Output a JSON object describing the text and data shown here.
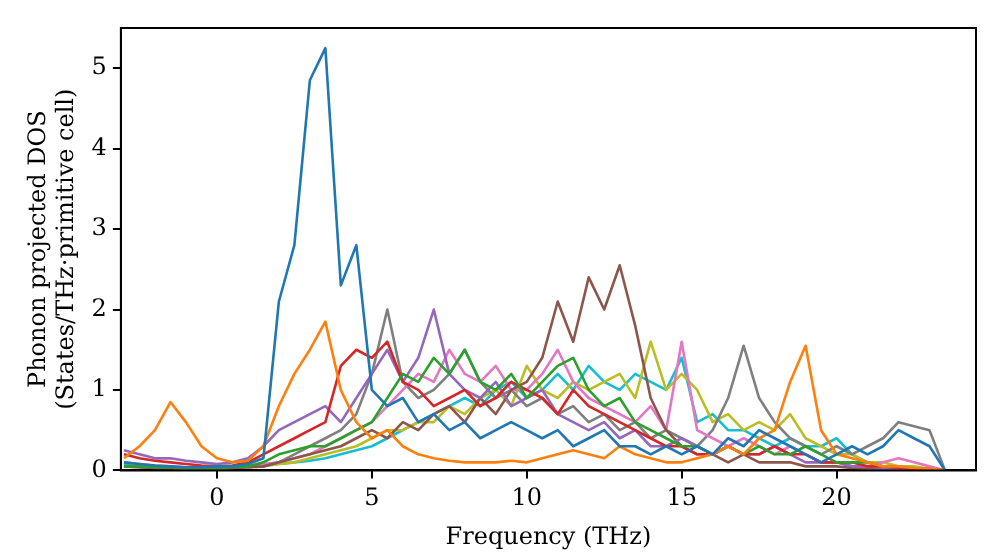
{
  "chart_data": {
    "type": "line",
    "xlabel": "Frequency (THz)",
    "ylabel": "Phonon projected DOS\n(States/THz·primitive cell)",
    "x": [
      -3,
      -2.5,
      -2,
      -1.5,
      -1,
      -0.5,
      0,
      0.5,
      1,
      1.5,
      2,
      2.5,
      3,
      3.5,
      4,
      4.5,
      5,
      5.5,
      6,
      6.5,
      7,
      7.5,
      8,
      8.5,
      9,
      9.5,
      10,
      10.5,
      11,
      11.5,
      12,
      12.5,
      13,
      13.5,
      14,
      14.5,
      15,
      15.5,
      16,
      16.5,
      17,
      17.5,
      18,
      18.5,
      19,
      19.5,
      20,
      20.5,
      21,
      21.5,
      22,
      22.5,
      23,
      23.5
    ],
    "series": [
      {
        "color": "#1f77b4",
        "values": [
          0.1,
          0.08,
          0.06,
          0.05,
          0.04,
          0.04,
          0.05,
          0.05,
          0.08,
          0.15,
          2.1,
          2.8,
          4.85,
          5.25,
          2.3,
          2.8,
          1.0,
          0.8,
          0.9,
          0.6,
          0.7,
          0.5,
          0.6,
          0.4,
          0.5,
          0.6,
          0.5,
          0.4,
          0.5,
          0.3,
          0.4,
          0.5,
          0.3,
          0.3,
          0.2,
          0.3,
          0.2,
          0.3,
          0.2,
          0.4,
          0.3,
          0.5,
          0.4,
          0.3,
          0.2,
          0.1,
          0.2,
          0.3,
          0.2,
          0.3,
          0.5,
          0.4,
          0.3,
          0
        ]
      },
      {
        "color": "#ff7f0e",
        "values": [
          0.15,
          0.3,
          0.5,
          0.85,
          0.6,
          0.3,
          0.15,
          0.1,
          0.12,
          0.3,
          0.8,
          1.2,
          1.5,
          1.85,
          1.0,
          0.6,
          0.4,
          0.5,
          0.3,
          0.2,
          0.15,
          0.12,
          0.1,
          0.1,
          0.1,
          0.12,
          0.1,
          0.15,
          0.2,
          0.25,
          0.2,
          0.15,
          0.3,
          0.2,
          0.15,
          0.1,
          0.1,
          0.15,
          0.2,
          0.3,
          0.2,
          0.4,
          0.5,
          1.1,
          1.55,
          0.5,
          0.2,
          0.15,
          0.1,
          0.05,
          0.05,
          0.03,
          0.02,
          0
        ]
      },
      {
        "color": "#2ca02c",
        "values": [
          0.05,
          0.05,
          0.04,
          0.04,
          0.03,
          0.03,
          0.03,
          0.04,
          0.05,
          0.1,
          0.2,
          0.25,
          0.3,
          0.3,
          0.4,
          0.5,
          0.6,
          0.9,
          1.2,
          1.1,
          1.4,
          1.2,
          1.5,
          1.1,
          1.0,
          1.2,
          0.9,
          1.1,
          1.3,
          1.4,
          1.0,
          0.8,
          0.9,
          0.6,
          0.5,
          0.4,
          0.3,
          0.3,
          0.2,
          0.3,
          0.2,
          0.3,
          0.2,
          0.2,
          0.3,
          0.2,
          0.1,
          0.1,
          0.1,
          0.05,
          null,
          null,
          null,
          null
        ]
      },
      {
        "color": "#d62728",
        "values": [
          0.2,
          0.15,
          0.12,
          0.1,
          0.08,
          0.06,
          0.05,
          0.06,
          0.1,
          0.2,
          0.3,
          0.4,
          0.5,
          0.6,
          1.3,
          1.5,
          1.4,
          1.6,
          1.1,
          1.0,
          0.8,
          0.9,
          1.0,
          0.8,
          0.9,
          1.1,
          1.0,
          0.9,
          0.7,
          1.0,
          0.8,
          0.7,
          0.6,
          0.5,
          0.4,
          0.3,
          0.3,
          0.2,
          0.2,
          0.3,
          0.2,
          0.2,
          0.3,
          0.2,
          0.2,
          0.1,
          0.1,
          0.1,
          0.05,
          0.05,
          0.03,
          0.02,
          0.02,
          0
        ]
      },
      {
        "color": "#9467bd",
        "values": [
          0.25,
          0.2,
          0.15,
          0.15,
          0.12,
          0.1,
          0.08,
          0.1,
          0.15,
          0.3,
          0.5,
          0.6,
          0.7,
          0.8,
          0.6,
          0.9,
          1.2,
          1.5,
          1.1,
          1.4,
          2.0,
          1.2,
          1.0,
          0.9,
          1.1,
          0.8,
          0.9,
          1.0,
          0.7,
          0.6,
          0.5,
          0.6,
          0.4,
          0.5,
          0.3,
          0.3,
          0.4,
          0.3,
          0.2,
          0.3,
          0.2,
          0.2,
          0.3,
          0.2,
          0.1,
          0.1,
          0.1,
          0.05,
          0.05,
          0.03,
          0.02,
          0.02,
          null,
          null
        ]
      },
      {
        "color": "#8c564b",
        "values": [
          0.05,
          0.04,
          0.03,
          0.03,
          0.02,
          0.02,
          0.02,
          0.03,
          0.04,
          0.05,
          0.1,
          0.15,
          0.2,
          0.25,
          0.3,
          0.4,
          0.5,
          0.4,
          0.6,
          0.5,
          0.7,
          0.8,
          0.6,
          0.9,
          0.7,
          1.0,
          1.1,
          1.4,
          2.1,
          1.6,
          2.4,
          2.0,
          2.55,
          1.8,
          0.9,
          0.5,
          0.3,
          0.2,
          0.2,
          0.1,
          0.2,
          0.1,
          0.1,
          0.1,
          0.05,
          0.05,
          0.05,
          0.03,
          0.02,
          0.02,
          0.01,
          0.01,
          0.01,
          0
        ]
      },
      {
        "color": "#e377c2",
        "values": [
          0.1,
          0.08,
          0.06,
          0.05,
          0.04,
          0.04,
          0.04,
          0.05,
          0.06,
          0.08,
          0.1,
          0.15,
          0.2,
          0.3,
          0.4,
          0.5,
          0.6,
          0.8,
          1.0,
          1.2,
          1.1,
          1.5,
          1.2,
          1.1,
          1.3,
          1.0,
          1.0,
          1.2,
          1.5,
          1.1,
          0.9,
          0.8,
          0.7,
          0.6,
          0.8,
          0.5,
          1.6,
          0.5,
          0.4,
          0.3,
          0.4,
          0.3,
          0.2,
          0.3,
          0.2,
          0.1,
          0.1,
          0.05,
          0.05,
          0.1,
          0.15,
          0.1,
          0.05,
          0
        ]
      },
      {
        "color": "#7f7f7f",
        "values": [
          0.05,
          0.04,
          0.03,
          0.03,
          0.02,
          0.02,
          0.02,
          0.03,
          0.04,
          0.05,
          0.1,
          0.2,
          0.3,
          0.4,
          0.5,
          0.7,
          1.2,
          2.0,
          1.1,
          0.9,
          1.0,
          1.2,
          1.5,
          1.1,
          0.9,
          1.0,
          0.8,
          0.9,
          0.7,
          0.8,
          0.6,
          0.7,
          0.5,
          0.6,
          0.4,
          0.5,
          0.4,
          0.3,
          0.5,
          0.9,
          1.55,
          0.9,
          0.6,
          0.4,
          0.3,
          0.2,
          0.3,
          0.2,
          0.3,
          0.4,
          0.6,
          0.55,
          0.5,
          0
        ]
      },
      {
        "color": "#bcbd22",
        "values": [
          null,
          null,
          null,
          null,
          null,
          null,
          null,
          null,
          0.04,
          0.05,
          0.08,
          0.1,
          0.15,
          0.2,
          0.25,
          0.3,
          0.4,
          0.5,
          0.5,
          0.6,
          0.6,
          0.8,
          0.7,
          0.9,
          1.0,
          0.8,
          1.3,
          1.0,
          0.9,
          1.1,
          1.0,
          1.1,
          1.2,
          0.9,
          1.6,
          1.0,
          1.2,
          1.0,
          0.6,
          0.7,
          0.5,
          0.6,
          0.5,
          0.7,
          0.4,
          0.3,
          0.2,
          0.2,
          0.1,
          0.1,
          0.05,
          0.05,
          0.02,
          0
        ]
      },
      {
        "color": "#17becf",
        "values": [
          0.08,
          0.06,
          0.05,
          0.04,
          0.04,
          0.03,
          0.03,
          0.04,
          0.05,
          0.06,
          0.08,
          0.1,
          0.12,
          0.15,
          0.2,
          0.25,
          0.3,
          0.4,
          0.5,
          0.6,
          0.7,
          0.8,
          0.9,
          0.8,
          1.0,
          1.1,
          0.9,
          1.0,
          1.2,
          1.0,
          1.3,
          1.1,
          1.0,
          1.2,
          1.1,
          1.0,
          1.4,
          0.6,
          0.7,
          0.5,
          0.5,
          0.4,
          0.3,
          0.4,
          0.3,
          0.3,
          0.4,
          0.2,
          0.1,
          null,
          null,
          null,
          null,
          null
        ]
      }
    ],
    "xlim": [
      -3.1,
      24.5
    ],
    "xticks": [
      0,
      5,
      10,
      15,
      20
    ],
    "ylim": [
      0,
      5.5
    ],
    "yticks": [
      0,
      1,
      2,
      3,
      4,
      5
    ],
    "grid": false,
    "legend": false,
    "marker": "none",
    "line_style": "solid"
  }
}
